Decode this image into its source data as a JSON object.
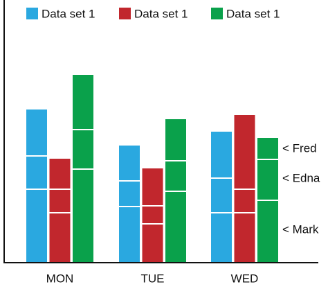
{
  "chart_data": {
    "type": "stacked-grouped-bar",
    "categories": [
      "MON",
      "TUE",
      "WED"
    ],
    "stack_labels": [
      "< Mark",
      "< Edna",
      "< Fred"
    ],
    "series": [
      {
        "name": "Data set 1",
        "color": "#2aa8e0",
        "values": [
          [
            104,
            48,
            68
          ],
          [
            79,
            37,
            52
          ],
          [
            70,
            50,
            68
          ]
        ]
      },
      {
        "name": "Data set 1",
        "color": "#c1272d",
        "values": [
          [
            70,
            34,
            45
          ],
          [
            54,
            26,
            55
          ],
          [
            70,
            34,
            108
          ]
        ]
      },
      {
        "name": "Data set 1",
        "color": "#0aa14b",
        "values": [
          [
            133,
            57,
            80
          ],
          [
            101,
            44,
            61
          ],
          [
            88,
            59,
            32
          ]
        ]
      }
    ],
    "ylim": [
      0,
      378
    ]
  }
}
